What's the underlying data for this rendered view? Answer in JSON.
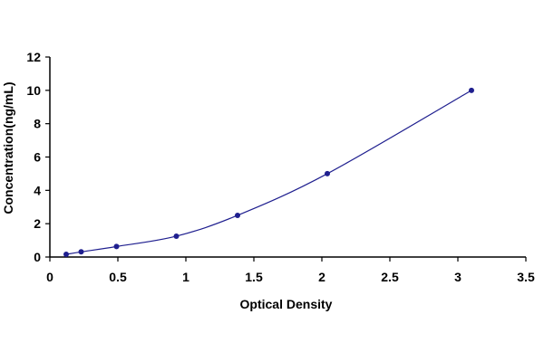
{
  "chart_data": {
    "type": "scatter",
    "title": "",
    "xlabel": "Optical Density",
    "ylabel": "Concentration(ng/mL)",
    "xlim": [
      0,
      3.5
    ],
    "ylim": [
      0,
      12
    ],
    "x_ticks": [
      "0",
      "0.5",
      "1",
      "1.5",
      "2",
      "2.5",
      "3",
      "3.5"
    ],
    "y_ticks": [
      "0",
      "2",
      "4",
      "6",
      "8",
      "10",
      "12"
    ],
    "grid": false,
    "legend": "none",
    "series": [
      {
        "points": [
          {
            "x": 0.12,
            "y": 0.16
          },
          {
            "x": 0.23,
            "y": 0.31
          },
          {
            "x": 0.49,
            "y": 0.63
          },
          {
            "x": 0.93,
            "y": 1.25
          },
          {
            "x": 1.38,
            "y": 2.5
          },
          {
            "x": 2.04,
            "y": 5
          },
          {
            "x": 3.1,
            "y": 10
          }
        ],
        "fit": "smooth-curve",
        "color": "#1f1f8f"
      }
    ],
    "axis_color": "#000000"
  }
}
